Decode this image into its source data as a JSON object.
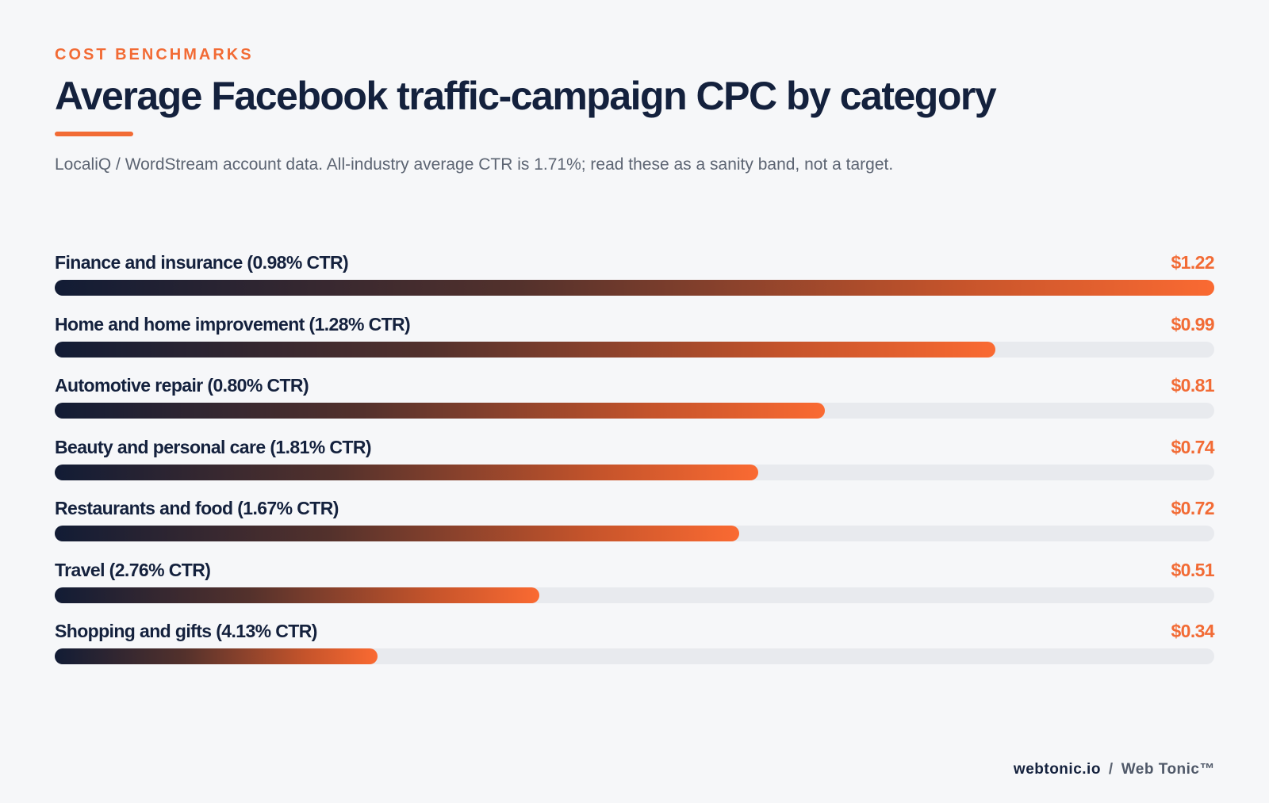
{
  "header": {
    "eyebrow": "COST BENCHMARKS",
    "title": "Average Facebook traffic-campaign CPC by category",
    "subtitle": "LocaliQ / WordStream account data. All-industry average CTR is 1.71%; read these as a sanity band, not a target."
  },
  "chart_data": {
    "type": "bar",
    "orientation": "horizontal",
    "categories": [
      "Finance and insurance (0.98% CTR)",
      "Home and home improvement (1.28% CTR)",
      "Automotive repair (0.80% CTR)",
      "Beauty and personal care (1.81% CTR)",
      "Restaurants and food (1.67% CTR)",
      "Travel (2.76% CTR)",
      "Shopping and gifts (4.13% CTR)"
    ],
    "values": [
      1.22,
      0.99,
      0.81,
      0.74,
      0.72,
      0.51,
      0.34
    ],
    "value_labels": [
      "$1.22",
      "$0.99",
      "$0.81",
      "$0.74",
      "$0.72",
      "$0.51",
      "$0.34"
    ],
    "xlim": [
      0,
      1.22
    ],
    "grid": false,
    "colors": {
      "gradient_start": "#121c35",
      "gradient_end": "#fa6a32",
      "track": "#e8eaee",
      "value_label": "#f26b35"
    }
  },
  "footer": {
    "brand": "webtonic.io",
    "separator": "/",
    "name": "Web Tonic™"
  }
}
